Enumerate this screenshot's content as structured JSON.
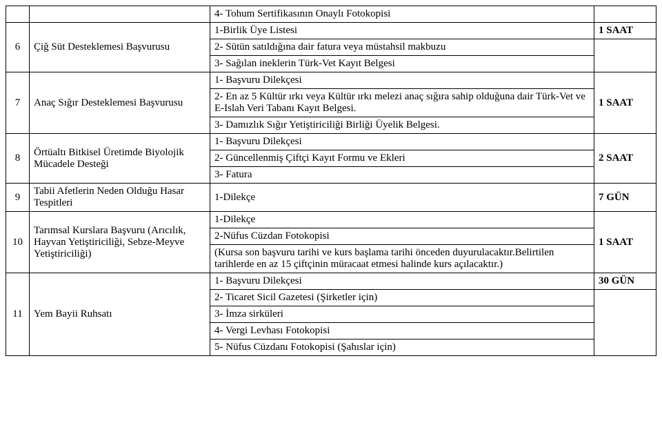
{
  "rows": {
    "r0": {
      "desc": "4- Tohum Sertifikasının Onaylı Fotokopisi"
    },
    "r6": {
      "num": "6",
      "title": "Çiğ Süt Desteklemesi Başvurusu",
      "d1": "1-Birlik Üye Listesi",
      "d2": "2- Sütün satıldığına dair fatura veya müstahsil makbuzu",
      "d3": "3- Sağılan ineklerin Türk-Vet Kayıt Belgesi",
      "time": "1 SAAT"
    },
    "r7": {
      "num": "7",
      "title": "Anaç Sığır Desteklemesi Başvurusu",
      "d1": "1- Başvuru Dilekçesi",
      "d2": "2- En az 5 Kültür ırkı veya Kültür ırkı melezi anaç sığıra sahip olduğuna dair Türk-Vet ve E-Islah Veri Tabanı Kayıt Belgesi.",
      "d3": "3- Damızlık Sığır Yetiştiriciliği Birliği Üyelik Belgesi.",
      "time": "1 SAAT"
    },
    "r8": {
      "num": "8",
      "title": "Örtüaltı Bitkisel Üretimde Biyolojik Mücadele Desteği",
      "d1": "1- Başvuru Dilekçesi",
      "d2": "2- Güncellenmiş Çiftçi Kayıt Formu ve Ekleri",
      "d3": "3- Fatura",
      "time": "2 SAAT"
    },
    "r9": {
      "num": "9",
      "title": "Tabii Afetlerin Neden Olduğu Hasar Tespitleri",
      "d1": "1-Dilekçe",
      "time": "7 GÜN"
    },
    "r10": {
      "num": "10",
      "title": "Tarımsal Kurslara Başvuru   (Arıcılık, Hayvan Yetiştiriciliği, Sebze-Meyve Yetiştiriciliği)",
      "d1": "1-Dilekçe",
      "d2": "2-Nüfus Cüzdan Fotokopisi",
      "d3": "(Kursa son başvuru tarihi ve kurs başlama tarihi önceden duyurulacaktır.Belirtilen tarihlerde en az 15 çiftçinin müracaat etmesi halinde kurs açılacaktır.)",
      "time": "1 SAAT"
    },
    "r11": {
      "num": "11",
      "title": "Yem Bayii Ruhsatı",
      "d1": "1- Başvuru Dilekçesi",
      "d2": "2- Ticaret Sicil Gazetesi (Şirketler için)",
      "d3": "3- İmza sirküleri",
      "d4": "4- Vergi Levhası Fotokopisi",
      "d5": "5- Nüfus Cüzdanı Fotokopisi (Şahıslar için)",
      "time": "30 GÜN"
    }
  }
}
